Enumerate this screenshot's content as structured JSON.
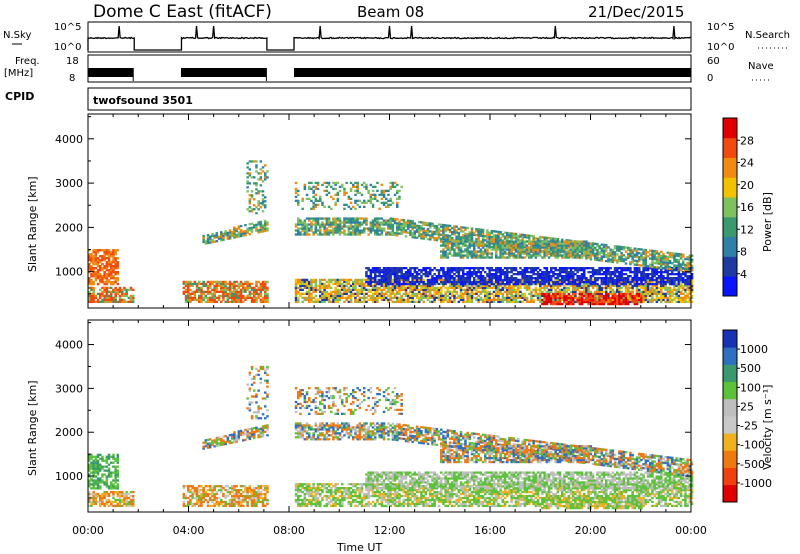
{
  "header": {
    "title": "Dome C East (fitACF)",
    "beam": "Beam 08",
    "date": "21/Dec/2015"
  },
  "top_panels": {
    "nsky_label": "N.Sky",
    "nsky_ticks": [
      "10^5",
      "10^0"
    ],
    "nsearch_label": "N.Search",
    "nsearch_ticks": [
      "10^5",
      "10^0"
    ],
    "freq_label_1": "Freq.",
    "freq_label_2": "[MHz]",
    "freq_ticks": [
      "18",
      "8"
    ],
    "nave_label": "Nave",
    "nave_ticks": [
      "60",
      "0"
    ],
    "cpid_label": "CPID",
    "cpid_value": "twofsound 3501"
  },
  "colors": {
    "power_scale": [
      "#0a14ff",
      "#1f3aa0",
      "#2f7fa8",
      "#3a9a6e",
      "#7fc060",
      "#f2c200",
      "#f08a10",
      "#f04a10",
      "#e00000"
    ],
    "velocity_scale": [
      "#1733b3",
      "#2f6fbf",
      "#3a9a6e",
      "#5cc23a",
      "#bebebe",
      "#c8c8c8",
      "#f0b020",
      "#f07810",
      "#f04010",
      "#e00000"
    ]
  },
  "chart_data": [
    {
      "type": "heatmap",
      "name": "power",
      "ylabel": "Slant Range [km]",
      "xlabel": "Time UT",
      "x_ticks": [
        "00:00",
        "04:00",
        "08:00",
        "12:00",
        "16:00",
        "20:00",
        "00:00"
      ],
      "y_ticks": [
        "1000",
        "2000",
        "3000",
        "4000"
      ],
      "ylim": [
        180,
        4560
      ],
      "colorbar_label": "Power [dB]",
      "colorbar_ticks": [
        "4",
        "8",
        "12",
        "16",
        "20",
        "24",
        "28"
      ],
      "clim": [
        0,
        32
      ],
      "data_gaps_hours": [
        [
          1.8,
          3.7
        ],
        [
          7.1,
          8.2
        ]
      ]
    },
    {
      "type": "heatmap",
      "name": "velocity",
      "ylabel": "Slant Range [km]",
      "xlabel": "Time UT",
      "x_ticks": [
        "00:00",
        "04:00",
        "08:00",
        "12:00",
        "16:00",
        "20:00",
        "00:00"
      ],
      "y_ticks": [
        "1000",
        "2000",
        "3000",
        "4000"
      ],
      "ylim": [
        180,
        4560
      ],
      "colorbar_label": "Velocity [m s⁻¹]",
      "colorbar_ticks": [
        "1000",
        "500",
        "100",
        "25",
        "-25",
        "-100",
        "-500",
        "-1000"
      ],
      "data_gaps_hours": [
        [
          1.8,
          3.7
        ],
        [
          7.1,
          8.2
        ]
      ]
    }
  ],
  "axis": {
    "time_label": "Time UT"
  }
}
